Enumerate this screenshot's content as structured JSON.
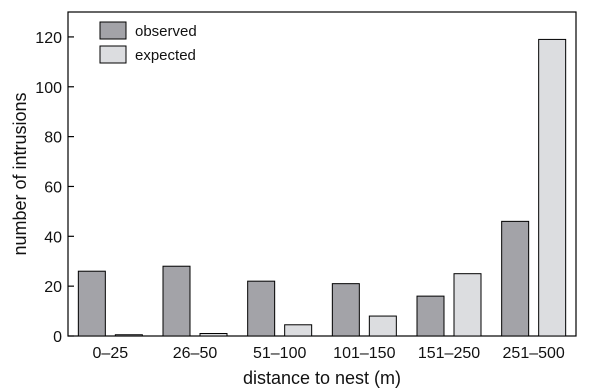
{
  "chart_data": {
    "type": "bar",
    "title": "",
    "xlabel": "distance to nest (m)",
    "ylabel": "number of intrusions",
    "categories": [
      "0–25",
      "26–50",
      "51–100",
      "101–150",
      "151–250",
      "251–500"
    ],
    "series": [
      {
        "name": "observed",
        "values": [
          26,
          28,
          22,
          21,
          16,
          46
        ],
        "color": "#a3a3a8"
      },
      {
        "name": "expected",
        "values": [
          0.5,
          1,
          4.5,
          8,
          25,
          119
        ],
        "color": "#dcdde0"
      }
    ],
    "ylim": [
      0,
      130
    ],
    "yticks": [
      0,
      20,
      40,
      60,
      80,
      100,
      120
    ],
    "grid": false,
    "legend_position": "top-left"
  }
}
